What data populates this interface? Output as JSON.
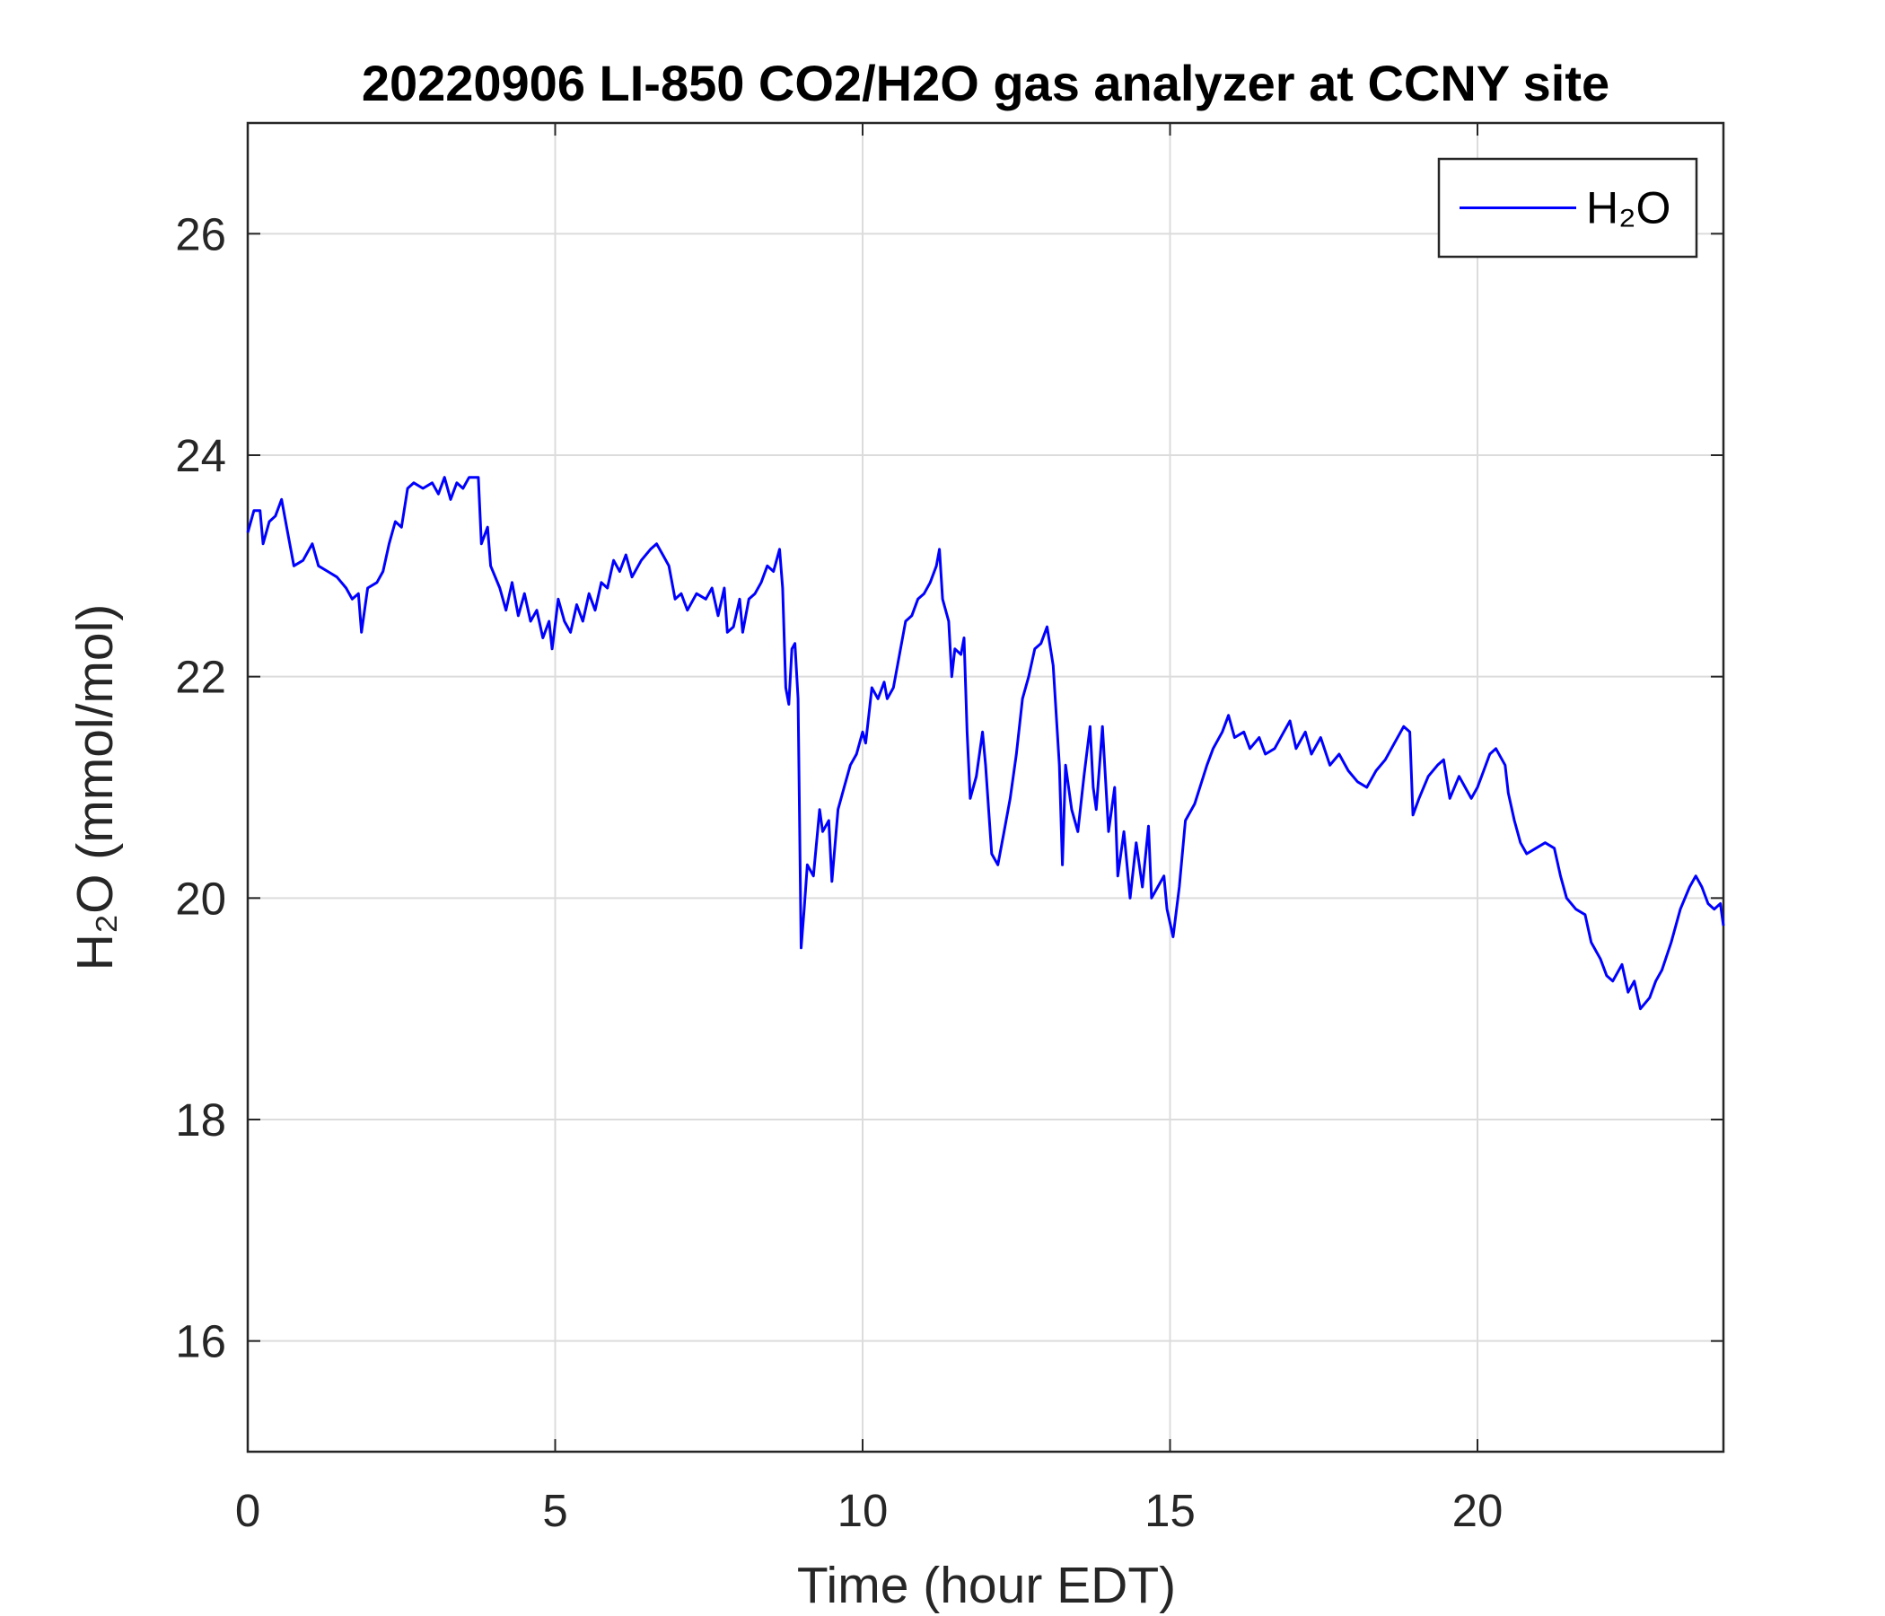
{
  "chart_data": {
    "type": "line",
    "title": "20220906 LI-850 CO2/H2O gas analyzer at CCNY site",
    "x_label": "Time (hour EDT)",
    "y_label": "H₂O (mmol/mol)",
    "xlim": [
      0,
      24
    ],
    "xticks": [
      0,
      5,
      10,
      15,
      20
    ],
    "ylim": [
      15,
      27
    ],
    "yticks": [
      16,
      18,
      20,
      22,
      24,
      26
    ],
    "grid": true,
    "legend": "upper right",
    "x": [
      0,
      0.1,
      0.2,
      0.25,
      0.35,
      0.45,
      0.55,
      0.65,
      0.75,
      0.9,
      1.05,
      1.15,
      1.3,
      1.45,
      1.6,
      1.7,
      1.8,
      1.85,
      1.95,
      2.1,
      2.2,
      2.3,
      2.4,
      2.5,
      2.6,
      2.7,
      2.85,
      3.0,
      3.1,
      3.2,
      3.3,
      3.4,
      3.5,
      3.6,
      3.75,
      3.8,
      3.9,
      3.95,
      4.1,
      4.2,
      4.3,
      4.4,
      4.5,
      4.6,
      4.7,
      4.8,
      4.9,
      4.95,
      5.05,
      5.15,
      5.25,
      5.35,
      5.45,
      5.55,
      5.65,
      5.75,
      5.85,
      5.95,
      6.05,
      6.15,
      6.25,
      6.4,
      6.55,
      6.65,
      6.75,
      6.85,
      6.95,
      7.05,
      7.15,
      7.3,
      7.45,
      7.55,
      7.65,
      7.75,
      7.8,
      7.9,
      8.0,
      8.05,
      8.15,
      8.25,
      8.35,
      8.45,
      8.55,
      8.65,
      8.7,
      8.75,
      8.8,
      8.85,
      8.9,
      8.95,
      9.0,
      9.05,
      9.1,
      9.2,
      9.3,
      9.35,
      9.45,
      9.5,
      9.6,
      9.7,
      9.8,
      9.9,
      10.0,
      10.05,
      10.1,
      10.15,
      10.25,
      10.35,
      10.4,
      10.5,
      10.6,
      10.7,
      10.8,
      10.9,
      11.0,
      11.1,
      11.2,
      11.25,
      11.3,
      11.4,
      11.45,
      11.5,
      11.6,
      11.65,
      11.7,
      11.75,
      11.85,
      11.95,
      12.0,
      12.1,
      12.2,
      12.3,
      12.4,
      12.5,
      12.6,
      12.7,
      12.8,
      12.9,
      13.0,
      13.1,
      13.2,
      13.25,
      13.3,
      13.4,
      13.5,
      13.6,
      13.7,
      13.75,
      13.8,
      13.9,
      14.0,
      14.1,
      14.15,
      14.25,
      14.35,
      14.45,
      14.55,
      14.65,
      14.7,
      14.8,
      14.9,
      14.95,
      15.05,
      15.15,
      15.25,
      15.4,
      15.6,
      15.7,
      15.85,
      15.95,
      16.05,
      16.2,
      16.3,
      16.45,
      16.55,
      16.7,
      16.85,
      16.95,
      17.05,
      17.2,
      17.3,
      17.45,
      17.6,
      17.75,
      17.9,
      18.05,
      18.2,
      18.35,
      18.5,
      18.65,
      18.8,
      18.9,
      18.95,
      19.05,
      19.2,
      19.35,
      19.45,
      19.55,
      19.7,
      19.8,
      19.9,
      20.0,
      20.1,
      20.2,
      20.3,
      20.45,
      20.5,
      20.6,
      20.7,
      20.8,
      20.95,
      21.1,
      21.25,
      21.35,
      21.45,
      21.6,
      21.75,
      21.85,
      22.0,
      22.1,
      22.2,
      22.35,
      22.45,
      22.55,
      22.65,
      22.8,
      22.9,
      23.0,
      23.15,
      23.3,
      23.45,
      23.55,
      23.65,
      23.75,
      23.85,
      23.95,
      24.0
    ],
    "series": [
      {
        "name": "H₂O",
        "color": "#0000ff",
        "values": [
          23.3,
          23.5,
          23.5,
          23.2,
          23.4,
          23.45,
          23.6,
          23.3,
          23.0,
          23.05,
          23.2,
          23.0,
          22.95,
          22.9,
          22.8,
          22.7,
          22.75,
          22.4,
          22.8,
          22.85,
          22.95,
          23.2,
          23.4,
          23.35,
          23.7,
          23.75,
          23.7,
          23.75,
          23.65,
          23.8,
          23.6,
          23.75,
          23.7,
          23.8,
          23.8,
          23.2,
          23.35,
          23.0,
          22.8,
          22.6,
          22.85,
          22.55,
          22.75,
          22.5,
          22.6,
          22.35,
          22.5,
          22.25,
          22.7,
          22.5,
          22.4,
          22.65,
          22.5,
          22.75,
          22.6,
          22.85,
          22.8,
          23.05,
          22.95,
          23.1,
          22.9,
          23.05,
          23.15,
          23.2,
          23.1,
          23.0,
          22.7,
          22.75,
          22.6,
          22.75,
          22.7,
          22.8,
          22.55,
          22.8,
          22.4,
          22.45,
          22.7,
          22.4,
          22.7,
          22.75,
          22.85,
          23.0,
          22.95,
          23.15,
          22.8,
          21.9,
          21.75,
          22.25,
          22.3,
          21.8,
          19.55,
          19.9,
          20.3,
          20.2,
          20.8,
          20.6,
          20.7,
          20.15,
          20.8,
          21.0,
          21.2,
          21.3,
          21.5,
          21.4,
          21.65,
          21.9,
          21.8,
          21.95,
          21.8,
          21.9,
          22.2,
          22.5,
          22.55,
          22.7,
          22.75,
          22.85,
          23.0,
          23.15,
          22.7,
          22.5,
          22.0,
          22.25,
          22.2,
          22.35,
          21.5,
          20.9,
          21.1,
          21.5,
          21.2,
          20.4,
          20.3,
          20.6,
          20.9,
          21.3,
          21.8,
          22.0,
          22.25,
          22.3,
          22.45,
          22.1,
          21.2,
          20.3,
          21.2,
          20.8,
          20.6,
          21.1,
          21.55,
          21.0,
          20.8,
          21.55,
          20.6,
          21.0,
          20.2,
          20.6,
          20.0,
          20.5,
          20.1,
          20.65,
          20.0,
          20.1,
          20.2,
          19.9,
          19.65,
          20.1,
          20.7,
          20.85,
          21.2,
          21.35,
          21.5,
          21.65,
          21.45,
          21.5,
          21.35,
          21.45,
          21.3,
          21.35,
          21.5,
          21.6,
          21.35,
          21.5,
          21.3,
          21.45,
          21.2,
          21.3,
          21.15,
          21.05,
          21.0,
          21.15,
          21.25,
          21.4,
          21.55,
          21.5,
          20.75,
          20.9,
          21.1,
          21.2,
          21.25,
          20.9,
          21.1,
          21.0,
          20.9,
          21.0,
          21.15,
          21.3,
          21.35,
          21.2,
          20.95,
          20.7,
          20.5,
          20.4,
          20.45,
          20.5,
          20.45,
          20.2,
          20.0,
          19.9,
          19.85,
          19.6,
          19.45,
          19.3,
          19.25,
          19.4,
          19.15,
          19.25,
          19.0,
          19.1,
          19.25,
          19.35,
          19.6,
          19.9,
          20.1,
          20.2,
          20.1,
          19.95,
          19.9,
          19.95,
          19.75
        ]
      }
    ]
  }
}
